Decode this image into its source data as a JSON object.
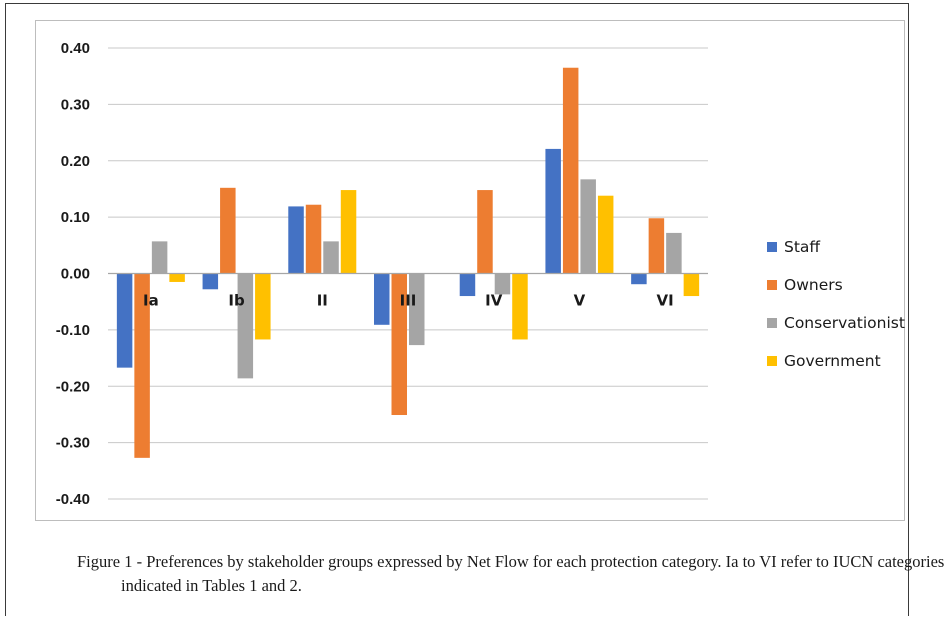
{
  "chart_data": {
    "type": "bar",
    "categories": [
      "Ia",
      "Ib",
      "II",
      "III",
      "IV",
      "V",
      "VI"
    ],
    "series": [
      {
        "name": "Staff",
        "color": "#4472C4",
        "values": [
          -0.167,
          -0.028,
          0.119,
          -0.091,
          -0.04,
          0.221,
          -0.019
        ]
      },
      {
        "name": "Owners",
        "color": "#ED7D31",
        "values": [
          -0.327,
          0.152,
          0.122,
          -0.251,
          0.148,
          0.365,
          0.098
        ]
      },
      {
        "name": "Conservationist",
        "color": "#A5A5A5",
        "values": [
          0.057,
          -0.186,
          0.057,
          -0.127,
          -0.037,
          0.167,
          0.072
        ]
      },
      {
        "name": "Government",
        "color": "#FFC000",
        "values": [
          -0.015,
          -0.117,
          0.148,
          0,
          -0.117,
          0.138,
          -0.04
        ]
      }
    ],
    "yticks": [
      "0.40",
      "0.30",
      "0.20",
      "0.10",
      "0.00",
      "-0.10",
      "-0.20",
      "-0.30",
      "-0.40"
    ],
    "ylim": [
      -0.4,
      0.4
    ],
    "grid": true,
    "legend_position": "right",
    "title": "",
    "xlabel": "",
    "ylabel": ""
  },
  "caption": {
    "text": "Figure 1 - Preferences by stakeholder groups expressed by Net Flow for each protection category. Ia to VI refer to IUCN categories indicated in Tables 1 and 2."
  }
}
